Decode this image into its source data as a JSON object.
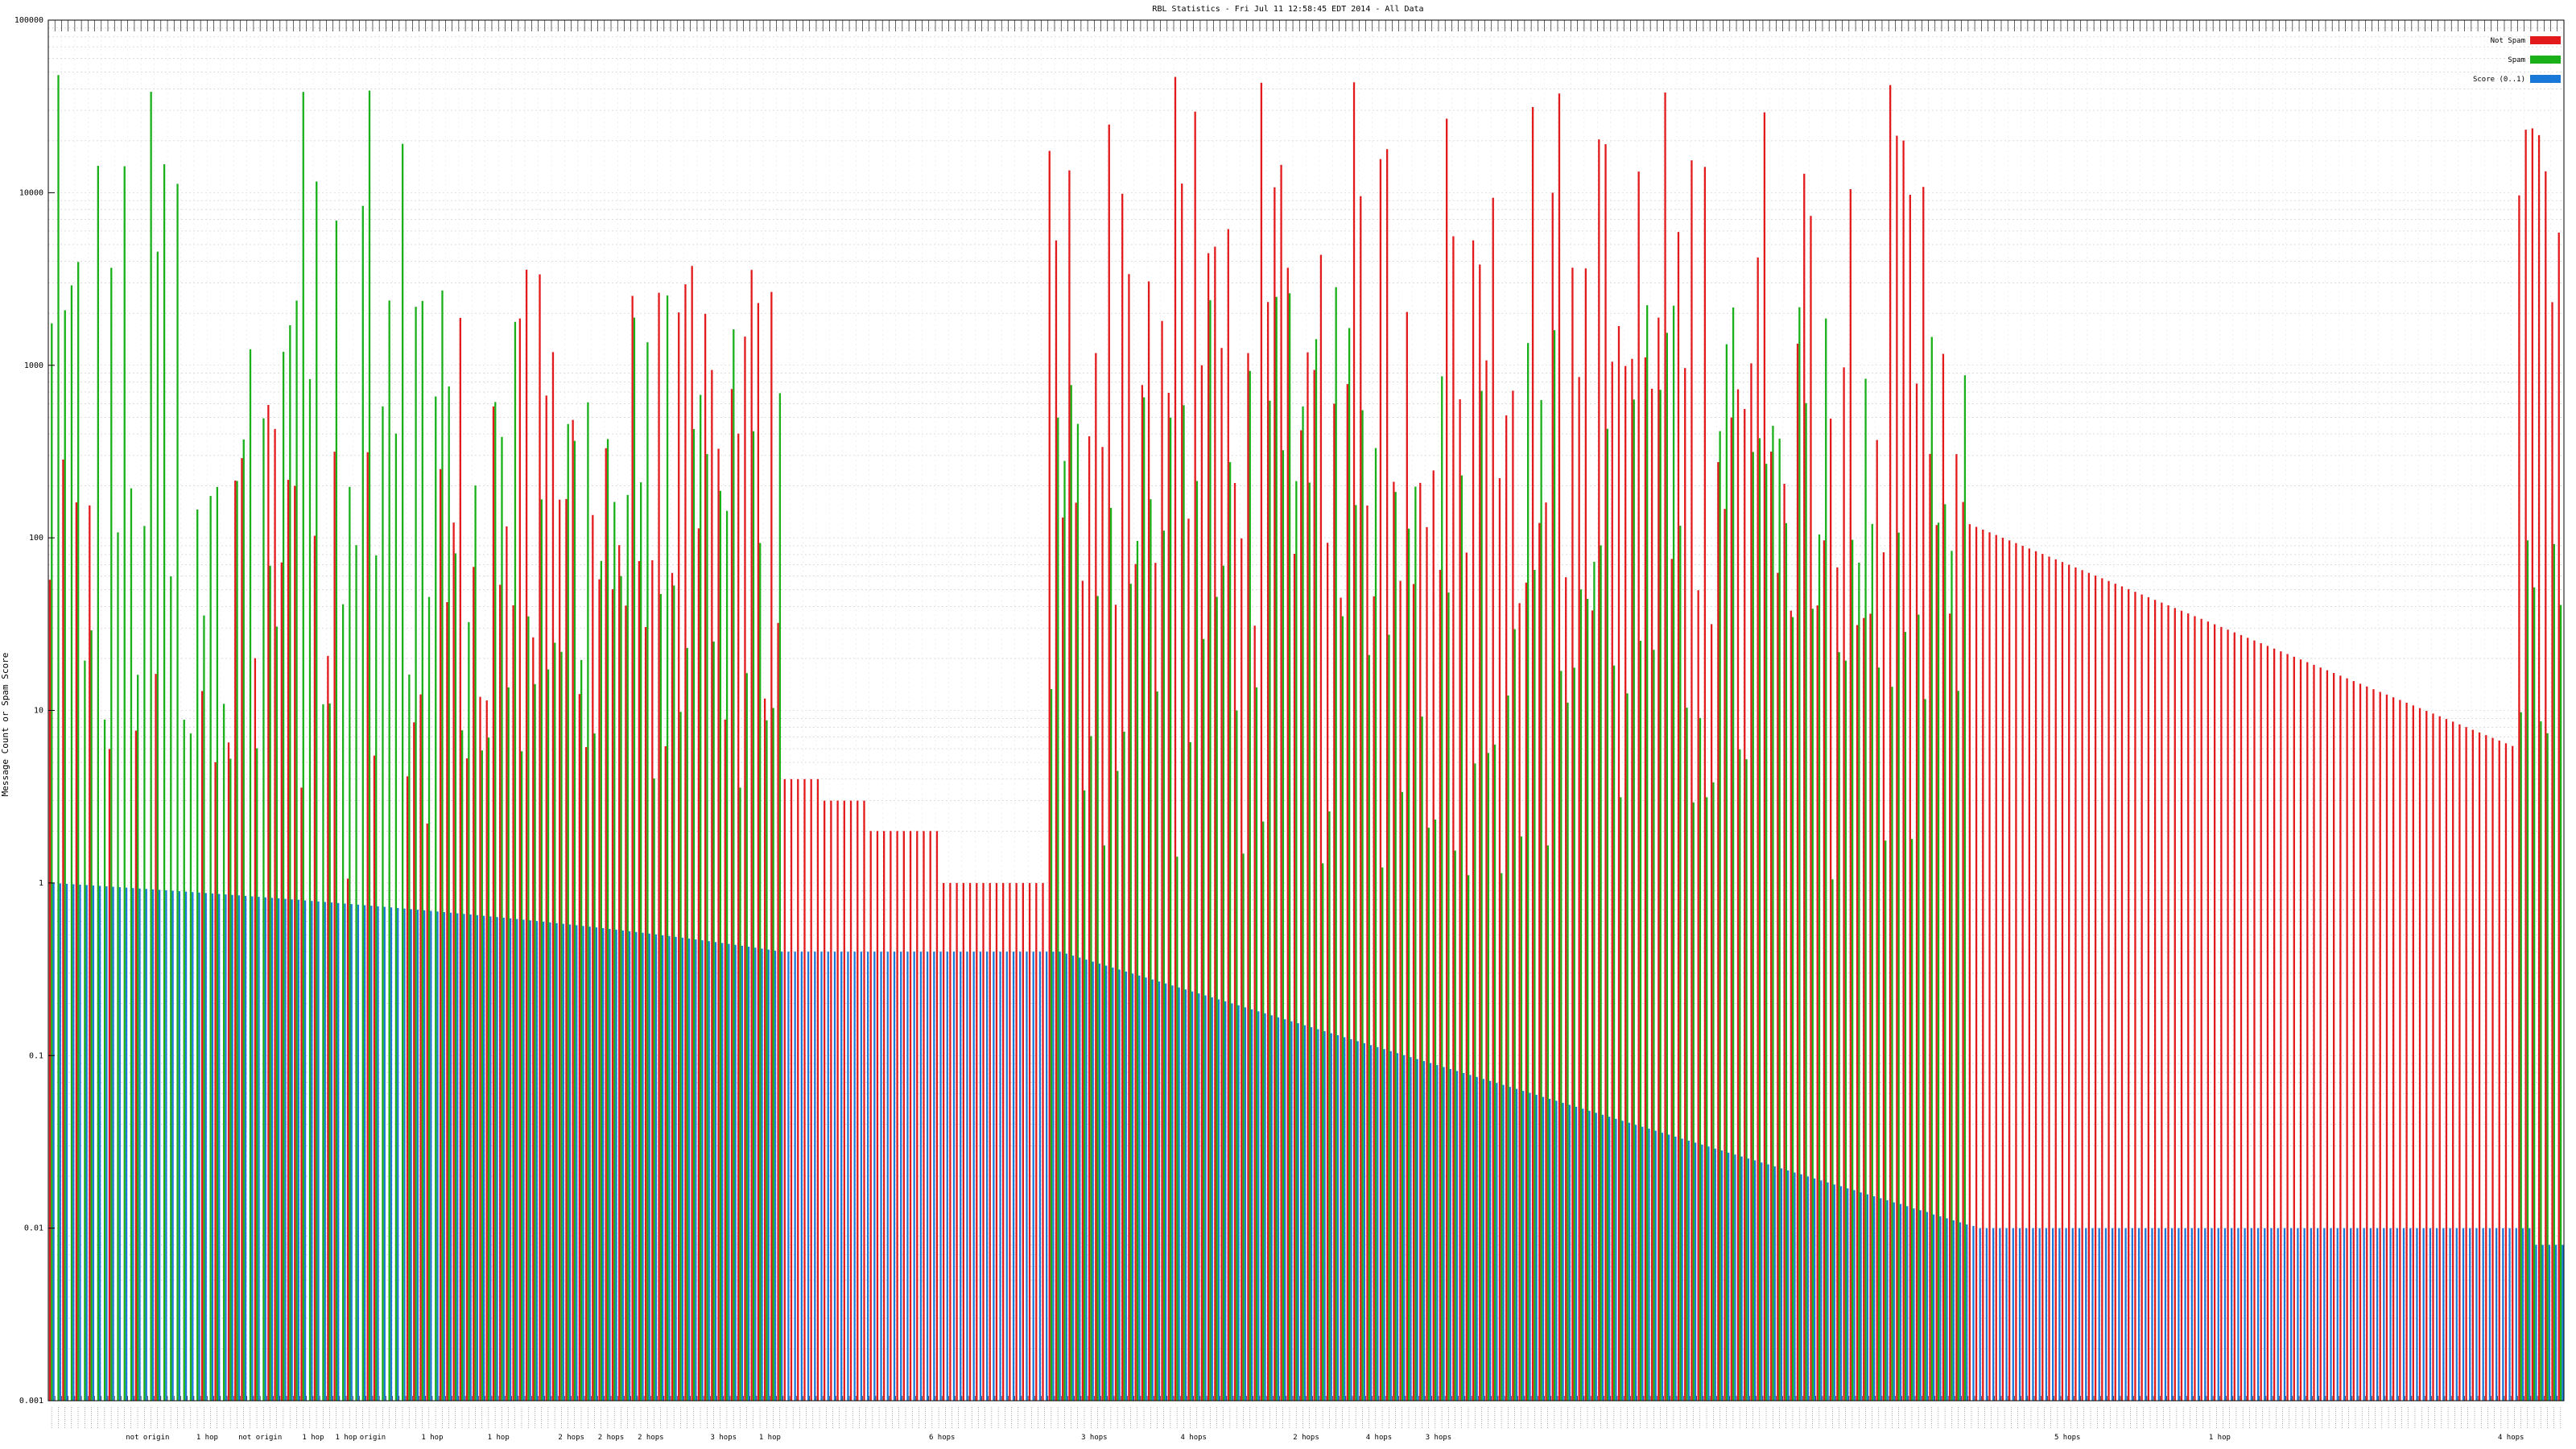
{
  "chart_data": {
    "type": "bar",
    "title": "RBL Statistics - Fri Jul 11 12:58:45 EDT 2014 - All Data",
    "ylabel": "Message Count or Spam Score",
    "xlabel": "",
    "yscale": "log",
    "ylim": [
      0.001,
      100000
    ],
    "y_ticks": [
      "0.001",
      "0.01",
      "0.1",
      "1",
      "10",
      "100",
      "1000",
      "10000",
      "100000"
    ],
    "grid": true,
    "legend_position": "top-right",
    "legend": [
      {
        "name": "Not Spam",
        "color": "#e31a1c"
      },
      {
        "name": "Spam",
        "color": "#1ab01a"
      },
      {
        "name": "Score (0..1)",
        "color": "#1a78d8"
      }
    ],
    "category_count": 380,
    "group_labels": [
      {
        "text": "not origin",
        "index": 15
      },
      {
        "text": "1 hop",
        "index": 24
      },
      {
        "text": "not origin",
        "index": 32
      },
      {
        "text": "1 hop",
        "index": 40
      },
      {
        "text": "1 hop",
        "index": 45
      },
      {
        "text": "origin",
        "index": 49
      },
      {
        "text": "1 hop",
        "index": 58
      },
      {
        "text": "1 hop",
        "index": 68
      },
      {
        "text": "2 hops",
        "index": 79
      },
      {
        "text": "2 hops",
        "index": 85
      },
      {
        "text": "2 hops",
        "index": 91
      },
      {
        "text": "3 hops",
        "index": 102
      },
      {
        "text": "1 hop",
        "index": 109
      },
      {
        "text": "6 hops",
        "index": 135
      },
      {
        "text": "3 hops",
        "index": 158
      },
      {
        "text": "4 hops",
        "index": 173
      },
      {
        "text": "2 hops",
        "index": 190
      },
      {
        "text": "4 hops",
        "index": 201
      },
      {
        "text": "3 hops",
        "index": 210
      },
      {
        "text": "5 hops",
        "index": 305
      },
      {
        "text": "1 hop",
        "index": 328
      },
      {
        "text": "4 hops",
        "index": 372
      }
    ],
    "series": [
      {
        "name": "Not Spam",
        "key": "notspam",
        "values_desc": "380 values derived from the chart generator below",
        "values": []
      },
      {
        "name": "Spam",
        "key": "spam",
        "values": []
      },
      {
        "name": "Score (0..1)",
        "key": "score",
        "values": []
      }
    ]
  },
  "colors": {
    "notspam": "#e31a1c",
    "spam": "#1ab01a",
    "score": "#1a78d8",
    "grid": "#c8c8c8"
  }
}
